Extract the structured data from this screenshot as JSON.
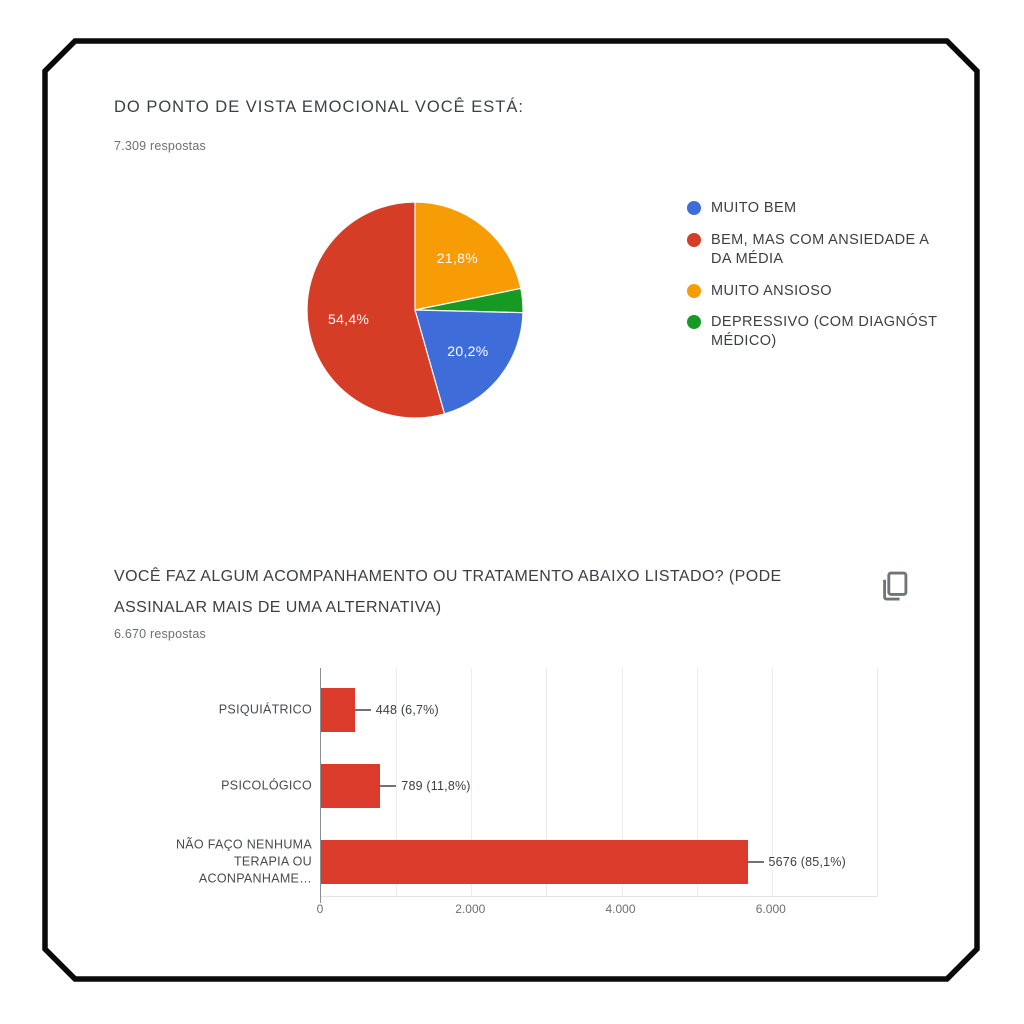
{
  "question1": {
    "title": "DO PONTO DE VISTA EMOCIONAL VOCÊ ESTÁ:",
    "responses": "7.309 respostas"
  },
  "question2": {
    "title": "VOCÊ FAZ ALGUM ACOMPANHAMENTO OU TRATAMENTO ABAIXO LISTADO? (PODE\nASSINALAR MAIS DE UMA ALTERNATIVA)",
    "responses": "6.670 respostas"
  },
  "icons": {
    "copy": "copy-icon"
  },
  "colors": {
    "frame": "#0a0a0a",
    "axis": "#8a8f94",
    "grid": "#ededed",
    "title_text": "#3a4045",
    "secondary_text": "#6b7075"
  },
  "chart_data": [
    {
      "type": "pie",
      "title": "DO PONTO DE VISTA EMOCIONAL VOCÊ ESTÁ:",
      "subtitle": "7.309 respostas",
      "legend_position": "right",
      "slices": [
        {
          "label": "MUITO BEM",
          "pct": 20.2,
          "display": "20,2%",
          "color": "#3e6cd9"
        },
        {
          "label": "BEM, MAS COM ANSIEDADE A\nDA MÉDIA",
          "pct": 54.4,
          "display": "54,4%",
          "color": "#d63d26"
        },
        {
          "label": "MUITO ANSIOSO",
          "pct": 21.8,
          "display": "21,8%",
          "color": "#f79c05"
        },
        {
          "label": "DEPRESSIVO (COM DIAGNÓST\nMÉDICO)",
          "pct": 3.6,
          "display": "",
          "color": "#169a24"
        }
      ],
      "draw_order": [
        2,
        3,
        0,
        1
      ]
    },
    {
      "type": "bar",
      "orientation": "horizontal",
      "title": "VOCÊ FAZ ALGUM ACOMPANHAMENTO OU TRATAMENTO ABAIXO LISTADO? (PODE ASSINALAR MAIS DE UMA ALTERNATIVA)",
      "subtitle": "6.670 respostas",
      "categories": [
        "PSIQUIÁTRICO",
        "PSICOLÓGICO",
        "NÃO FAÇO NENHUMA\nTERAPIA OU\nACONPANHAME…"
      ],
      "values": [
        448,
        789,
        5676
      ],
      "value_labels": [
        "448 (6,7%)",
        "789 (11,8%)",
        "5676 (85,1%)"
      ],
      "bar_color": "#da3b2b",
      "xticks": [
        {
          "value": 0,
          "label": "0"
        },
        {
          "value": 2000,
          "label": "2.000"
        },
        {
          "value": 4000,
          "label": "4.000"
        },
        {
          "value": 6000,
          "label": "6.000"
        }
      ],
      "xmax": 7400,
      "gridline_step": 1000,
      "grid": true
    }
  ]
}
